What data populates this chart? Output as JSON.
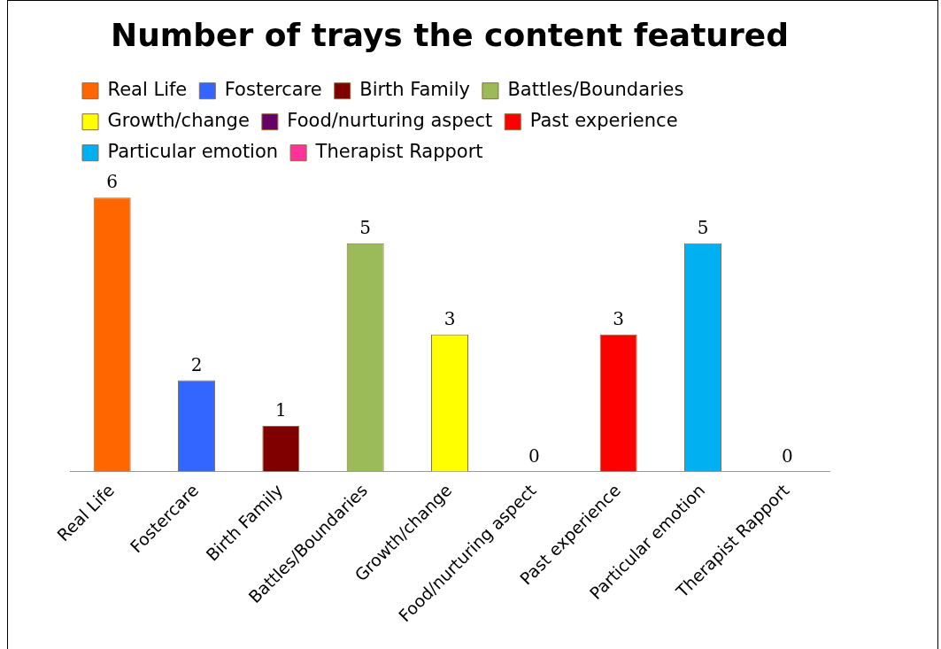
{
  "chart_data": {
    "type": "bar",
    "title": "Number of trays the content featured",
    "categories": [
      "Real Life",
      "Fostercare",
      "Birth Family",
      "Battles/Boundaries",
      "Growth/change",
      "Food/nurturing aspect",
      "Past experience",
      "Particular emotion",
      "Therapist Rapport"
    ],
    "series": [
      {
        "name": "Real Life",
        "color": "#ff6600",
        "values": [
          6,
          null,
          null,
          null,
          null,
          null,
          null,
          null,
          null
        ]
      },
      {
        "name": "Fostercare",
        "color": "#3366ff",
        "values": [
          null,
          2,
          null,
          null,
          null,
          null,
          null,
          null,
          null
        ]
      },
      {
        "name": "Birth Family",
        "color": "#800000",
        "values": [
          null,
          null,
          1,
          null,
          null,
          null,
          null,
          null,
          null
        ]
      },
      {
        "name": "Battles/Boundaries",
        "color": "#9bbb59",
        "values": [
          null,
          null,
          null,
          5,
          null,
          null,
          null,
          null,
          null
        ]
      },
      {
        "name": "Growth/change",
        "color": "#ffff00",
        "values": [
          null,
          null,
          null,
          null,
          3,
          null,
          null,
          null,
          null
        ]
      },
      {
        "name": "Food/nurturing aspect",
        "color": "#660066",
        "values": [
          null,
          null,
          null,
          null,
          null,
          0,
          null,
          null,
          null
        ]
      },
      {
        "name": "Past experience",
        "color": "#ff0000",
        "values": [
          null,
          null,
          null,
          null,
          null,
          null,
          3,
          null,
          null
        ]
      },
      {
        "name": "Particular emotion",
        "color": "#00b0f0",
        "values": [
          null,
          null,
          null,
          null,
          null,
          null,
          null,
          5,
          null
        ]
      },
      {
        "name": "Therapist Rapport",
        "color": "#ff3399",
        "values": [
          null,
          null,
          null,
          null,
          null,
          null,
          null,
          null,
          0
        ]
      }
    ],
    "data_labels": true,
    "legend": "top",
    "grid": false
  }
}
